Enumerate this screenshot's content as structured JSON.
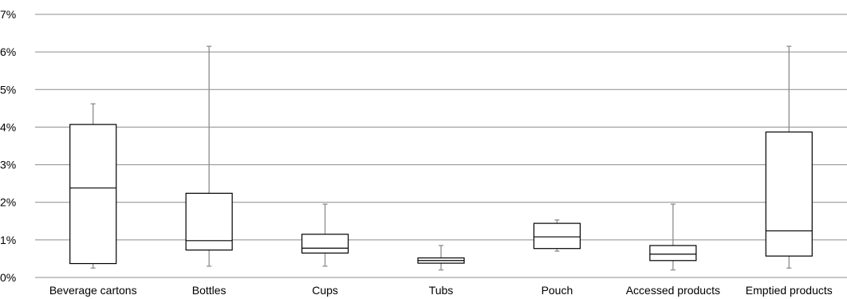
{
  "chart_data": {
    "type": "boxplot",
    "title": "",
    "xlabel": "",
    "ylabel": "",
    "ylim": [
      0,
      7
    ],
    "y_ticks": [
      "0%",
      "1%",
      "2%",
      "3%",
      "4%",
      "5%",
      "6%",
      "7%"
    ],
    "grid": true,
    "categories": [
      "Beverage cartons",
      "Bottles",
      "Cups",
      "Tubs",
      "Pouch",
      "Accessed products",
      "Emptied products"
    ],
    "boxes": [
      {
        "min": 0.25,
        "q1": 0.37,
        "median": 2.38,
        "q3": 4.07,
        "max": 4.62
      },
      {
        "min": 0.3,
        "q1": 0.73,
        "median": 0.98,
        "q3": 2.24,
        "max": 6.15
      },
      {
        "min": 0.3,
        "q1": 0.65,
        "median": 0.78,
        "q3": 1.15,
        "max": 1.95
      },
      {
        "min": 0.2,
        "q1": 0.38,
        "median": 0.45,
        "q3": 0.52,
        "max": 0.85
      },
      {
        "min": 0.7,
        "q1": 0.77,
        "median": 1.08,
        "q3": 1.44,
        "max": 1.53
      },
      {
        "min": 0.2,
        "q1": 0.45,
        "median": 0.62,
        "q3": 0.85,
        "max": 1.95
      },
      {
        "min": 0.25,
        "q1": 0.57,
        "median": 1.24,
        "q3": 3.87,
        "max": 6.15
      }
    ]
  }
}
